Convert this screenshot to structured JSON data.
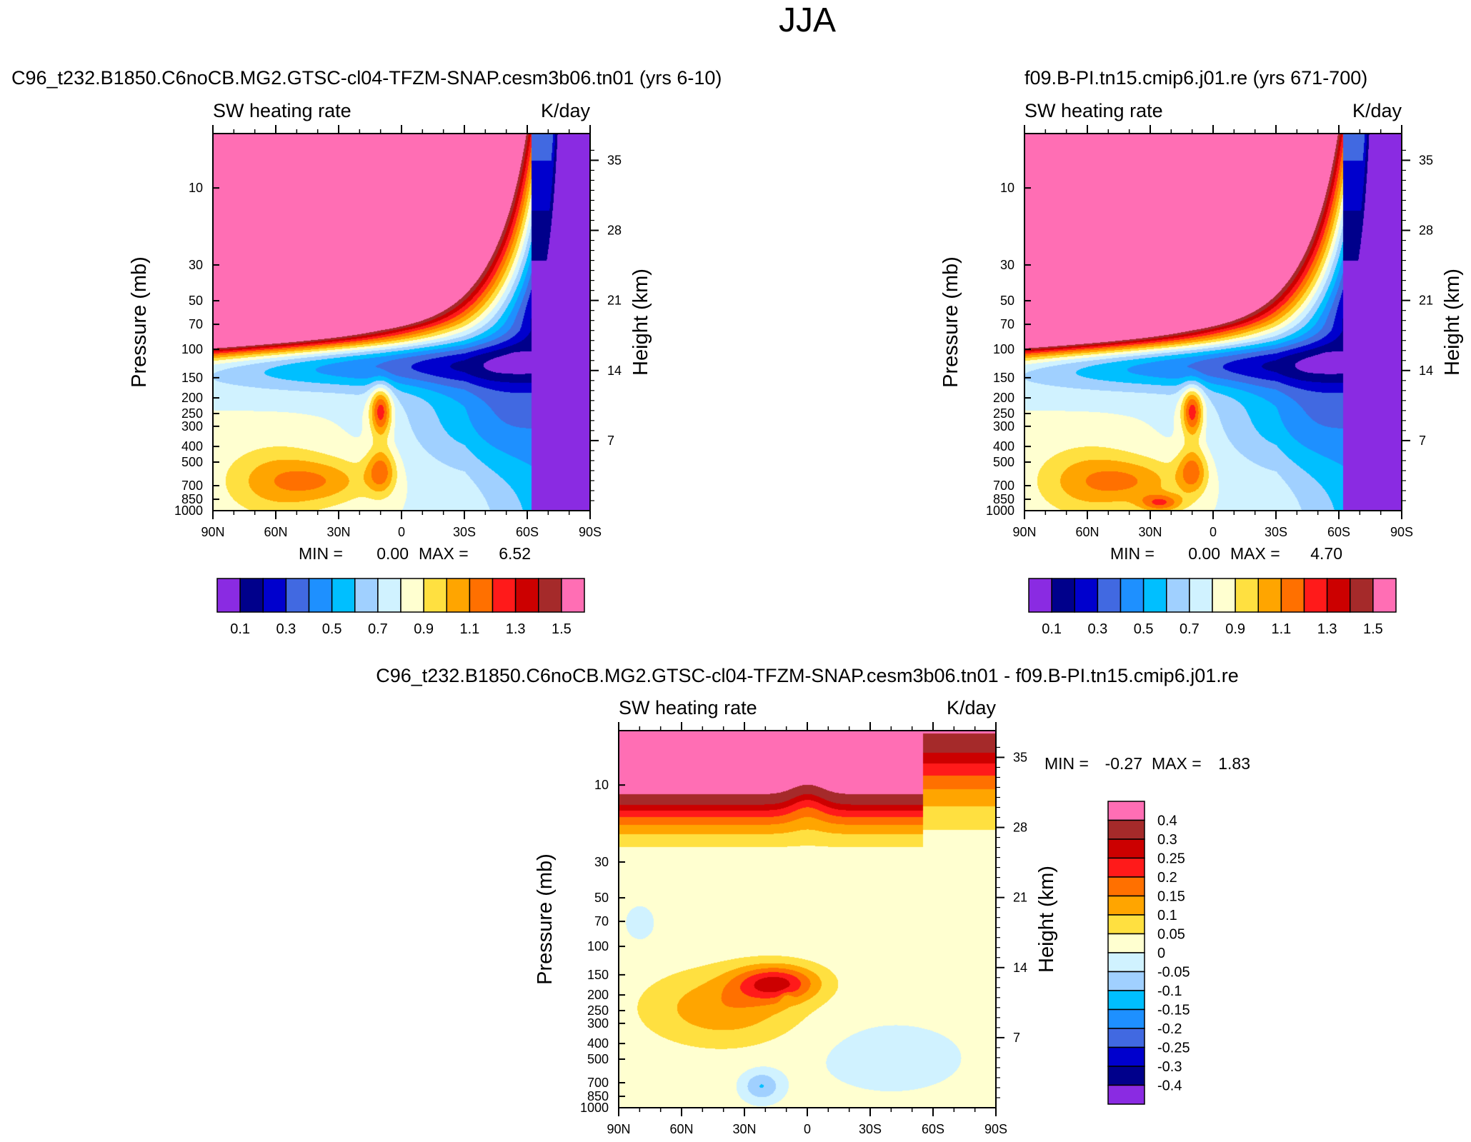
{
  "page_title": "JJA",
  "chart_data": [
    {
      "type": "heatmap",
      "subtitle": "C96_t232.B1850.C6noCB.MG2.GTSC-cl04-TFZM-SNAP.cesm3b06.tn01 (yrs 6-10)",
      "left_label": "SW heating rate",
      "right_label": "K/day",
      "ylabel": "Pressure (mb)",
      "ylabel_right": "Height (km)",
      "x_ticks": [
        "90N",
        "60N",
        "30N",
        "0",
        "30S",
        "60S",
        "90S"
      ],
      "y_ticks": [
        "10",
        "30",
        "50",
        "70",
        "100",
        "150",
        "200",
        "250",
        "300",
        "400",
        "500",
        "700",
        "850",
        "1000"
      ],
      "y_values": [
        10,
        30,
        50,
        70,
        100,
        150,
        200,
        250,
        300,
        400,
        500,
        700,
        850,
        1000
      ],
      "height_ticks": [
        "35",
        "28",
        "21",
        "14",
        "7"
      ],
      "height_values": [
        35,
        28,
        21,
        14,
        7
      ],
      "stats": {
        "min_label": "MIN =",
        "min": "0.00",
        "max_label": "MAX =",
        "max": "6.52"
      },
      "colorbar_labels": [
        "0.1",
        "0.3",
        "0.5",
        "0.7",
        "0.9",
        "1.1",
        "1.3",
        "1.5"
      ],
      "colorbar_levels": [
        0.1,
        0.2,
        0.3,
        0.4,
        0.5,
        0.6,
        0.7,
        0.8,
        0.9,
        1.0,
        1.1,
        1.2,
        1.3,
        1.4,
        1.5
      ],
      "colors": [
        "#8a2be2",
        "#00008b",
        "#0000cd",
        "#4169e1",
        "#1e90ff",
        "#00bfff",
        "#a0d0ff",
        "#d0f2ff",
        "#ffffd0",
        "#ffe040",
        "#ffa500",
        "#ff7000",
        "#ff1a1a",
        "#cc0000",
        "#a52a2a",
        "#ff6eb4"
      ]
    },
    {
      "type": "heatmap",
      "subtitle": "f09.B-PI.tn15.cmip6.j01.re (yrs 671-700)",
      "left_label": "SW heating rate",
      "right_label": "K/day",
      "ylabel": "Pressure (mb)",
      "ylabel_right": "Height (km)",
      "x_ticks": [
        "90N",
        "60N",
        "30N",
        "0",
        "30S",
        "60S",
        "90S"
      ],
      "y_ticks": [
        "10",
        "30",
        "50",
        "70",
        "100",
        "150",
        "200",
        "250",
        "300",
        "400",
        "500",
        "700",
        "850",
        "1000"
      ],
      "y_values": [
        10,
        30,
        50,
        70,
        100,
        150,
        200,
        250,
        300,
        400,
        500,
        700,
        850,
        1000
      ],
      "height_ticks": [
        "35",
        "28",
        "21",
        "14",
        "7"
      ],
      "height_values": [
        35,
        28,
        21,
        14,
        7
      ],
      "stats": {
        "min_label": "MIN =",
        "min": "0.00",
        "max_label": "MAX =",
        "max": "4.70"
      },
      "colorbar_labels": [
        "0.1",
        "0.3",
        "0.5",
        "0.7",
        "0.9",
        "1.1",
        "1.3",
        "1.5"
      ],
      "colorbar_levels": [
        0.1,
        0.2,
        0.3,
        0.4,
        0.5,
        0.6,
        0.7,
        0.8,
        0.9,
        1.0,
        1.1,
        1.2,
        1.3,
        1.4,
        1.5
      ],
      "colors": [
        "#8a2be2",
        "#00008b",
        "#0000cd",
        "#4169e1",
        "#1e90ff",
        "#00bfff",
        "#a0d0ff",
        "#d0f2ff",
        "#ffffd0",
        "#ffe040",
        "#ffa500",
        "#ff7000",
        "#ff1a1a",
        "#cc0000",
        "#a52a2a",
        "#ff6eb4"
      ]
    },
    {
      "type": "heatmap",
      "subtitle": "C96_t232.B1850.C6noCB.MG2.GTSC-cl04-TFZM-SNAP.cesm3b06.tn01 - f09.B-PI.tn15.cmip6.j01.re",
      "left_label": "SW heating rate",
      "right_label": "K/day",
      "ylabel": "Pressure (mb)",
      "ylabel_right": "Height (km)",
      "x_ticks": [
        "90N",
        "60N",
        "30N",
        "0",
        "30S",
        "60S",
        "90S"
      ],
      "y_ticks": [
        "10",
        "30",
        "50",
        "70",
        "100",
        "150",
        "200",
        "250",
        "300",
        "400",
        "500",
        "700",
        "850",
        "1000"
      ],
      "y_values": [
        10,
        30,
        50,
        70,
        100,
        150,
        200,
        250,
        300,
        400,
        500,
        700,
        850,
        1000
      ],
      "height_ticks": [
        "35",
        "28",
        "21",
        "14",
        "7"
      ],
      "height_values": [
        35,
        28,
        21,
        14,
        7
      ],
      "stats": {
        "min_label": "MIN =",
        "min": "-0.27",
        "max_label": "MAX =",
        "max": "1.83"
      },
      "colorbar_labels": [
        "0.4",
        "0.3",
        "0.25",
        "0.2",
        "0.15",
        "0.1",
        "0.05",
        "0",
        "-0.05",
        "-0.1",
        "-0.15",
        "-0.2",
        "-0.25",
        "-0.3",
        "-0.4"
      ],
      "colorbar_levels": [
        0.4,
        0.3,
        0.25,
        0.2,
        0.15,
        0.1,
        0.05,
        0,
        -0.05,
        -0.1,
        -0.15,
        -0.2,
        -0.25,
        -0.3,
        -0.4
      ],
      "colors": [
        "#ff6eb4",
        "#a52a2a",
        "#cc0000",
        "#ff1a1a",
        "#ff7000",
        "#ffa500",
        "#ffe040",
        "#ffffd0",
        "#d0f2ff",
        "#a0d0ff",
        "#00bfff",
        "#1e90ff",
        "#4169e1",
        "#0000cd",
        "#00008b",
        "#8a2be2"
      ]
    }
  ]
}
